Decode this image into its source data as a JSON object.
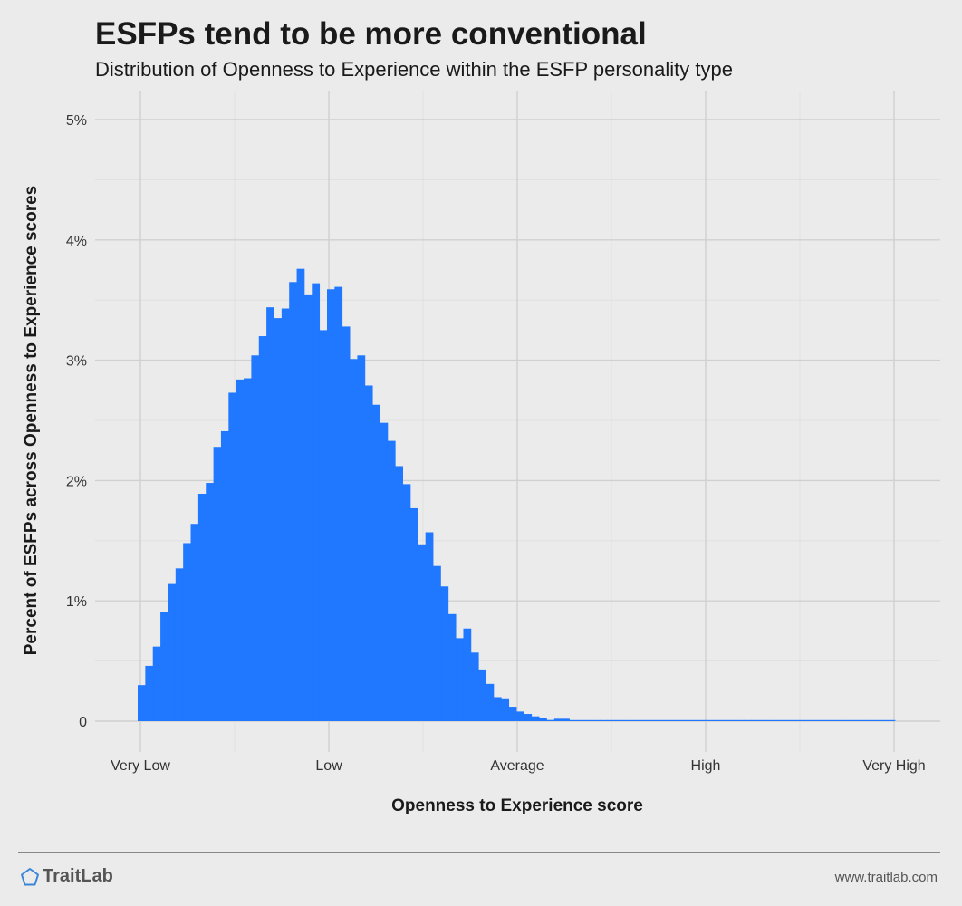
{
  "header": {
    "title": "ESFPs tend to be more conventional",
    "subtitle": "Distribution of Openness to Experience within the ESFP personality type"
  },
  "footer": {
    "brand": "TraitLab",
    "url": "www.traitlab.com",
    "logo_icon": "pentagon-icon",
    "brand_color": "#3a86d8"
  },
  "chart_data": {
    "type": "bar",
    "title": "ESFPs tend to be more conventional",
    "subtitle": "Distribution of Openness to Experience within the ESFP personality type",
    "xlabel": "Openness to Experience score",
    "ylabel": "Percent of ESFPs across Openness to Experience scores",
    "x_tick_labels": [
      "Very Low",
      "Low",
      "Average",
      "High",
      "Very High"
    ],
    "y_ticks": [
      0,
      1,
      2,
      3,
      4,
      5
    ],
    "y_tick_labels": [
      "0",
      "1%",
      "2%",
      "3%",
      "4%",
      "5%"
    ],
    "ylim": [
      0,
      5
    ],
    "grid": true,
    "bar_color": "#1f78ff",
    "series": [
      {
        "values": [
          0.3,
          0.46,
          0.62,
          0.91,
          1.14,
          1.27,
          1.48,
          1.64,
          1.89,
          1.98,
          2.28,
          2.41,
          2.73,
          2.84,
          2.85,
          3.04,
          3.2,
          3.44,
          3.35,
          3.43,
          3.65,
          3.76,
          3.54,
          3.64,
          3.25,
          3.59,
          3.61,
          3.28,
          3.01,
          3.04,
          2.79,
          2.63,
          2.48,
          2.33,
          2.12,
          1.97,
          1.77,
          1.47,
          1.57,
          1.29,
          1.12,
          0.89,
          0.69,
          0.77,
          0.57,
          0.43,
          0.31,
          0.2,
          0.19,
          0.12,
          0.08,
          0.06,
          0.04,
          0.03,
          0.01,
          0.02,
          0.02,
          0.005,
          0.004,
          0.003,
          0.003,
          0.002,
          0.002,
          0.002,
          0.002,
          0.002,
          0.002,
          0.002,
          0.002,
          0.002,
          0.002,
          0.002,
          0.002,
          0.002,
          0.002,
          0.002,
          0.002,
          0.002,
          0.002,
          0.002,
          0.002,
          0.002,
          0.002,
          0.002,
          0.002,
          0.002,
          0.002,
          0.002,
          0.002,
          0.002,
          0.002,
          0.002,
          0.002,
          0.002,
          0.002,
          0.002,
          0.002,
          0.002,
          0.002,
          0.002
        ]
      }
    ]
  }
}
